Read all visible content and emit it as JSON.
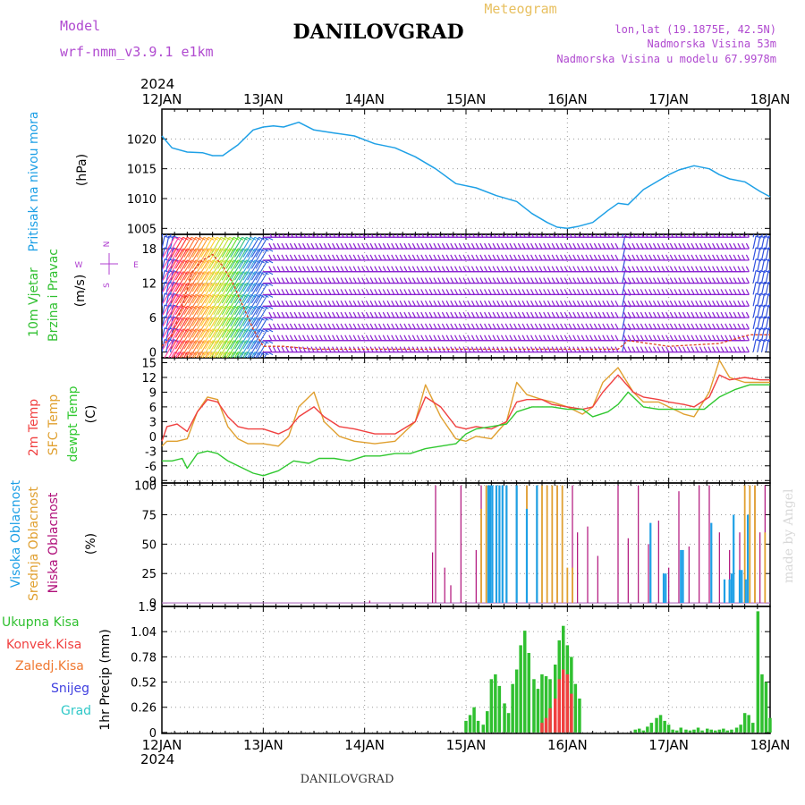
{
  "header": {
    "model_label": "Model",
    "model_name": "wrf-nmm_v3.9.1 e1km",
    "station": "DANILOVGRAD",
    "product": "Meteogram",
    "coords": "lon,lat (19.1875E, 42.5N)",
    "altitude": "Nadmorska Visina 53m",
    "model_altitude": "Nadmorska Visina u modelu 67.9978m"
  },
  "footer": {
    "station": "DANILOVGRAD",
    "credit": "made by Angel"
  },
  "time_axis": {
    "year": "2024",
    "day_labels": [
      "12JAN",
      "13JAN",
      "14JAN",
      "15JAN",
      "16JAN",
      "17JAN",
      "18JAN"
    ]
  },
  "colors": {
    "pressure": "#1ea0e6",
    "t2m": "#f04040",
    "sfc": "#e0a030",
    "dewpt": "#30c830",
    "high_cloud": "#1ea0e6",
    "mid_cloud": "#e0a030",
    "low_cloud": "#b0107a",
    "precip_total": "#30c030",
    "precip_conv": "#f04040",
    "precip_frz": "#f07830",
    "snow": "#4040e0",
    "hail": "#30c8c8",
    "wind_title": "#30c030",
    "wind_speed": "#e04020",
    "windrose": "#b040d0"
  },
  "chart_data": [
    {
      "type": "line",
      "id": "pressure",
      "ylabel": [
        "Pritisak na nivou mora",
        "(hPa)"
      ],
      "ylim": [
        1004,
        1025
      ],
      "yticks": [
        1005,
        1010,
        1015,
        1020
      ],
      "grid": true,
      "x_unit": "days since 12JAN 00 UTC",
      "series": [
        {
          "name": "Pritisak na nivou mora",
          "x": [
            0,
            0.1,
            0.25,
            0.4,
            0.5,
            0.6,
            0.75,
            0.9,
            1.0,
            1.1,
            1.2,
            1.35,
            1.5,
            1.7,
            1.9,
            2.1,
            2.3,
            2.5,
            2.7,
            2.9,
            3.1,
            3.3,
            3.5,
            3.65,
            3.8,
            3.9,
            4.0,
            4.1,
            4.25,
            4.4,
            4.5,
            4.6,
            4.75,
            4.9,
            5.0,
            5.1,
            5.25,
            5.4,
            5.5,
            5.6,
            5.75,
            5.9,
            6.0
          ],
          "values": [
            1020.5,
            1018.5,
            1017.8,
            1017.7,
            1017.2,
            1017.2,
            1019.0,
            1021.5,
            1022.0,
            1022.2,
            1022.0,
            1022.8,
            1021.5,
            1021.0,
            1020.5,
            1019.2,
            1018.5,
            1017.0,
            1015.0,
            1012.5,
            1011.8,
            1010.5,
            1009.5,
            1007.5,
            1006.0,
            1005.2,
            1005.0,
            1005.3,
            1006.0,
            1008.0,
            1009.2,
            1009.0,
            1011.5,
            1013.0,
            1014.0,
            1014.8,
            1015.5,
            1015.0,
            1014.0,
            1013.3,
            1012.8,
            1011.2,
            1010.3
          ]
        }
      ]
    },
    {
      "type": "barbs",
      "id": "wind",
      "ylabel": [
        "10m Vjetar",
        "Brzina i Pravac",
        "(m/s)"
      ],
      "windrose_labels": {
        "n": "N",
        "s": "S",
        "e": "E",
        "w": "W"
      },
      "ylim": [
        -1,
        20.5
      ],
      "yticks": [
        0,
        6,
        12,
        18
      ],
      "grid": true,
      "barb_rows": [
        0,
        2,
        4,
        6,
        8,
        10,
        12,
        14,
        16,
        18,
        20
      ],
      "barb_step_hours": 1,
      "speed": {
        "x": [
          0,
          0.1,
          0.2,
          0.3,
          0.4,
          0.5,
          0.6,
          0.7,
          0.8,
          0.9,
          1.0,
          1.2,
          1.5,
          2.0,
          2.5,
          3.0,
          3.5,
          4.0,
          4.5,
          4.6,
          5.0,
          5.5,
          5.8,
          6.0
        ],
        "values": [
          1,
          3,
          8,
          14,
          16,
          17,
          15,
          12,
          8,
          4,
          1,
          1,
          0.5,
          0.5,
          0.5,
          0.5,
          0.5,
          0.5,
          0.5,
          2,
          1,
          1.5,
          3,
          3
        ]
      },
      "dir_segments": [
        {
          "from": 0.0,
          "to": 0.1,
          "dir_deg": 20,
          "color": "#3050e0"
        },
        {
          "from": 0.1,
          "to": 1.05,
          "dir_deg": 210,
          "color": "rainbow"
        },
        {
          "from": 1.05,
          "to": 4.5,
          "dir_deg": 90,
          "color": "#8a20d0"
        },
        {
          "from": 4.5,
          "to": 4.55,
          "dir_deg": 20,
          "color": "#3050e0"
        },
        {
          "from": 4.55,
          "to": 5.8,
          "dir_deg": 90,
          "color": "#8a20d0"
        },
        {
          "from": 5.8,
          "to": 6.0,
          "dir_deg": 20,
          "color": "#3050e0"
        }
      ]
    },
    {
      "type": "line",
      "id": "temperature",
      "ylabel": [
        "2m Temp",
        "SFC Temp",
        "dewpt Temp",
        "(C)"
      ],
      "ylim": [
        -9.5,
        16
      ],
      "yticks": [
        -9,
        -6,
        -3,
        0,
        3,
        6,
        9,
        12,
        15
      ],
      "grid": true,
      "series": [
        {
          "name": "2m Temp",
          "x": [
            0,
            0.05,
            0.15,
            0.25,
            0.35,
            0.45,
            0.55,
            0.65,
            0.75,
            0.85,
            1.0,
            1.15,
            1.25,
            1.35,
            1.5,
            1.6,
            1.75,
            1.9,
            2.1,
            2.3,
            2.5,
            2.6,
            2.75,
            2.9,
            3.0,
            3.1,
            3.25,
            3.4,
            3.5,
            3.6,
            3.75,
            3.85,
            4.0,
            4.15,
            4.25,
            4.35,
            4.5,
            4.65,
            4.75,
            4.9,
            5.0,
            5.15,
            5.25,
            5.4,
            5.5,
            5.6,
            5.75,
            5.9,
            6.0
          ],
          "values": [
            -1,
            2,
            2.5,
            1,
            5,
            7.5,
            7,
            4,
            2,
            1.5,
            1.5,
            0.5,
            1.5,
            4,
            6,
            4,
            2,
            1.5,
            0.5,
            0.5,
            3,
            8,
            6,
            2,
            1.5,
            2,
            1.5,
            3,
            7,
            7.5,
            7.5,
            6.5,
            6,
            5.5,
            6,
            9,
            12.5,
            9,
            8,
            7.5,
            7,
            6.5,
            6,
            8,
            12.5,
            11.5,
            12,
            11.5,
            11.5
          ]
        },
        {
          "name": "SFC Temp",
          "x": [
            0,
            0.05,
            0.15,
            0.25,
            0.35,
            0.45,
            0.55,
            0.65,
            0.75,
            0.85,
            1.0,
            1.15,
            1.25,
            1.35,
            1.5,
            1.6,
            1.75,
            1.9,
            2.1,
            2.3,
            2.5,
            2.6,
            2.75,
            2.9,
            3.0,
            3.1,
            3.25,
            3.4,
            3.5,
            3.6,
            3.75,
            3.85,
            4.0,
            4.15,
            4.25,
            4.35,
            4.5,
            4.65,
            4.75,
            4.9,
            5.0,
            5.15,
            5.25,
            5.4,
            5.5,
            5.6,
            5.75,
            5.9,
            6.0
          ],
          "values": [
            -2,
            -1,
            -1,
            -0.5,
            5,
            8,
            7.5,
            2,
            -0.5,
            -1.5,
            -1.5,
            -2,
            0,
            6,
            9,
            3,
            0,
            -1,
            -1.5,
            -1,
            3,
            10.5,
            4,
            -0.5,
            -1,
            0,
            -0.5,
            3,
            11,
            8.5,
            7.5,
            7,
            6,
            4.5,
            6,
            11,
            14,
            9,
            7,
            7,
            6,
            4.5,
            4,
            9,
            15.5,
            12,
            11,
            11,
            11
          ]
        },
        {
          "name": "dewpt Temp",
          "x": [
            0,
            0.1,
            0.2,
            0.25,
            0.35,
            0.45,
            0.55,
            0.65,
            0.75,
            0.9,
            1.0,
            1.15,
            1.3,
            1.45,
            1.55,
            1.7,
            1.85,
            2.0,
            2.15,
            2.3,
            2.45,
            2.6,
            2.75,
            2.9,
            3.0,
            3.1,
            3.25,
            3.4,
            3.5,
            3.65,
            3.85,
            4.0,
            4.15,
            4.25,
            4.4,
            4.5,
            4.6,
            4.75,
            4.9,
            5.0,
            5.15,
            5.25,
            5.35,
            5.5,
            5.65,
            5.8,
            6.0
          ],
          "values": [
            -5,
            -5,
            -4.5,
            -6.5,
            -3.5,
            -3,
            -3.5,
            -5,
            -6,
            -7.5,
            -8,
            -7,
            -5,
            -5.5,
            -4.5,
            -4.5,
            -5,
            -4,
            -4,
            -3.5,
            -3.5,
            -2.5,
            -2,
            -1.5,
            0.5,
            1.5,
            2,
            2.5,
            5,
            6,
            6,
            5.5,
            5.5,
            4,
            5,
            6.5,
            9,
            6,
            5.5,
            5.5,
            5.5,
            5.5,
            5.5,
            8,
            9.5,
            10.5,
            10.5
          ]
        }
      ]
    },
    {
      "type": "bar",
      "id": "clouds",
      "ylabel": [
        "Visoka Oblacnost",
        "Srednja Oblacnost",
        "Niska Oblacnost",
        "(%)"
      ],
      "ylim": [
        -3,
        102
      ],
      "yticks": [
        0,
        25,
        50,
        75,
        100
      ],
      "grid": true,
      "series": [
        {
          "name": "Niska Oblacnost",
          "x": [
            2.05,
            2.67,
            2.7,
            2.79,
            2.85,
            2.95,
            3.1,
            3.15,
            3.2,
            3.3,
            3.4,
            3.5,
            3.6,
            3.7,
            3.8,
            3.9,
            4.05,
            4.1,
            4.2,
            4.3,
            4.5,
            4.6,
            4.7,
            4.8,
            4.9,
            5.0,
            5.1,
            5.2,
            5.3,
            5.4,
            5.5,
            5.6,
            5.7,
            5.8,
            5.85,
            5.9,
            5.95
          ],
          "values": [
            2,
            43,
            100,
            30,
            15,
            100,
            45,
            100,
            100,
            100,
            100,
            100,
            100,
            100,
            100,
            100,
            100,
            60,
            65,
            40,
            100,
            55,
            100,
            50,
            70,
            30,
            95,
            48,
            100,
            100,
            60,
            45,
            60,
            100,
            100,
            60,
            100
          ]
        },
        {
          "name": "Srednja Oblacnost",
          "x": [
            3.15,
            3.2,
            3.3,
            3.4,
            3.5,
            3.6,
            3.7,
            3.75,
            3.8,
            3.85,
            3.9,
            3.95,
            4.0,
            4.05,
            5.75,
            5.8,
            5.85,
            5.95
          ],
          "values": [
            80,
            100,
            100,
            100,
            100,
            100,
            100,
            100,
            100,
            100,
            100,
            100,
            30,
            30,
            100,
            100,
            100,
            60
          ]
        },
        {
          "name": "Visoka Oblacnost",
          "x": [
            3.22,
            3.23,
            3.24,
            3.26,
            3.3,
            3.33,
            3.36,
            3.4,
            3.5,
            3.6,
            3.7,
            4.82,
            4.95,
            4.97,
            5.12,
            5.14,
            5.42,
            5.55,
            5.6,
            5.62,
            5.64,
            5.7,
            5.72,
            5.76,
            5.78
          ],
          "values": [
            100,
            100,
            100,
            100,
            100,
            100,
            100,
            100,
            100,
            80,
            100,
            68,
            25,
            25,
            45,
            45,
            68,
            20,
            20,
            25,
            75,
            28,
            28,
            20,
            75
          ]
        }
      ]
    },
    {
      "type": "bar",
      "id": "precip",
      "ylabel": [
        "1hr Precip (mm)"
      ],
      "legend": [
        "Ukupna Kisa",
        "Konvek.Kisa",
        "Zaledj.Kisa",
        "Snijeg",
        "Grad"
      ],
      "ylim": [
        -0.01,
        1.3
      ],
      "yticks": [
        0,
        0.26,
        0.52,
        0.78,
        1.04,
        1.3
      ],
      "grid": true,
      "series": [
        {
          "name": "Ukupna Kisa",
          "x": [
            3.0,
            3.04,
            3.08,
            3.12,
            3.17,
            3.21,
            3.25,
            3.29,
            3.33,
            3.38,
            3.42,
            3.46,
            3.5,
            3.54,
            3.58,
            3.62,
            3.67,
            3.71,
            3.75,
            3.79,
            3.83,
            3.88,
            3.92,
            3.96,
            4.0,
            4.04,
            4.08,
            4.12,
            4.67,
            4.71,
            4.75,
            4.79,
            4.83,
            4.88,
            4.92,
            4.96,
            5.0,
            5.04,
            5.08,
            5.12,
            5.17,
            5.21,
            5.25,
            5.29,
            5.33,
            5.38,
            5.42,
            5.46,
            5.5,
            5.54,
            5.58,
            5.62,
            5.67,
            5.71,
            5.75,
            5.79,
            5.83,
            5.88,
            5.92,
            5.96,
            6.0
          ],
          "values": [
            0.12,
            0.18,
            0.26,
            0.12,
            0.08,
            0.22,
            0.55,
            0.6,
            0.48,
            0.3,
            0.2,
            0.5,
            0.65,
            0.9,
            1.05,
            0.82,
            0.55,
            0.45,
            0.6,
            0.58,
            0.55,
            0.7,
            0.95,
            1.1,
            0.9,
            0.78,
            0.5,
            0.35,
            0.03,
            0.04,
            0.02,
            0.06,
            0.1,
            0.15,
            0.18,
            0.12,
            0.08,
            0.03,
            0.02,
            0.05,
            0.03,
            0.02,
            0.03,
            0.05,
            0.02,
            0.04,
            0.03,
            0.02,
            0.03,
            0.04,
            0.02,
            0.03,
            0.05,
            0.08,
            0.2,
            0.18,
            0.1,
            1.25,
            0.6,
            0.52,
            0.15
          ]
        },
        {
          "name": "Konvek.Kisa",
          "x": [
            3.75,
            3.79,
            3.83,
            3.88,
            3.92,
            3.96,
            4.0,
            4.04
          ],
          "values": [
            0.1,
            0.15,
            0.25,
            0.35,
            0.55,
            0.65,
            0.6,
            0.4
          ]
        }
      ]
    }
  ]
}
